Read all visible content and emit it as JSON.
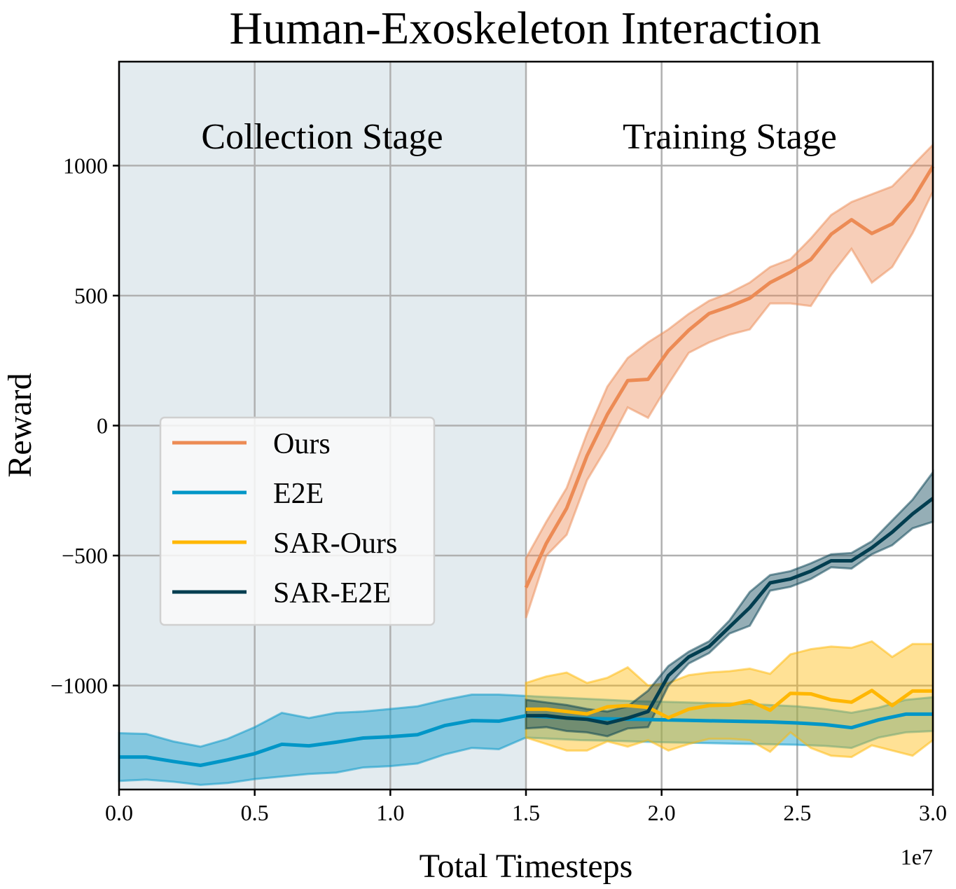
{
  "chart_data": {
    "type": "line",
    "title": "Human-Exoskeleton Interaction",
    "xlabel": "Total Timesteps",
    "ylabel": "Reward",
    "x_offset_label": "1e7",
    "xlim": [
      0,
      30000000
    ],
    "ylim": [
      -1400,
      1400
    ],
    "xticks": [
      0,
      5000000,
      10000000,
      15000000,
      20000000,
      25000000,
      30000000
    ],
    "xtick_labels": [
      "0.0",
      "0.5",
      "1.0",
      "1.5",
      "2.0",
      "2.5",
      "3.0"
    ],
    "yticks": [
      -1000,
      -500,
      0,
      500,
      1000
    ],
    "ytick_labels": [
      "−1000",
      "−500",
      "0",
      "500",
      "1000"
    ],
    "grid": true,
    "legend_placement": "center-left",
    "regions": [
      {
        "label": "Collection Stage",
        "x": [
          0,
          15000000
        ],
        "color": "#e3ebef"
      },
      {
        "label": "Training Stage",
        "x": [
          15000000,
          30000000
        ],
        "color": "#ffffff"
      }
    ],
    "series": [
      {
        "name": "Ours",
        "color": "#ec8b55",
        "x_start": 15000000,
        "x_step": 750000,
        "mean": [
          -623,
          -453,
          -318,
          -116,
          43,
          173,
          178,
          288,
          367,
          431,
          458,
          490,
          550,
          590,
          639,
          736,
          792,
          739,
          776,
          868,
          997
        ],
        "upper": [
          -510,
          -370,
          -240,
          -30,
          150,
          260,
          320,
          370,
          430,
          480,
          510,
          550,
          610,
          640,
          720,
          810,
          860,
          890,
          920,
          1000,
          1080
        ],
        "lower": [
          -740,
          -500,
          -420,
          -210,
          -80,
          70,
          30,
          160,
          280,
          320,
          350,
          370,
          470,
          470,
          460,
          580,
          680,
          550,
          610,
          740,
          900
        ]
      },
      {
        "name": "E2E",
        "color": "#0096c7",
        "x_start": 0,
        "x_step": 1000000,
        "mean": [
          -1275,
          -1275,
          -1292,
          -1307,
          -1286,
          -1262,
          -1226,
          -1232,
          -1218,
          -1202,
          -1197,
          -1189,
          -1154,
          -1135,
          -1137,
          -1116,
          -1122,
          -1126,
          -1128,
          -1130,
          -1132,
          -1134,
          -1136,
          -1138,
          -1140,
          -1144,
          -1150,
          -1162,
          -1132,
          -1110,
          -1110
        ],
        "upper": [
          -1183,
          -1186,
          -1215,
          -1235,
          -1205,
          -1160,
          -1105,
          -1125,
          -1105,
          -1100,
          -1090,
          -1080,
          -1055,
          -1035,
          -1035,
          -1040,
          -1045,
          -1050,
          -1055,
          -1060,
          -1062,
          -1065,
          -1068,
          -1070,
          -1075,
          -1080,
          -1090,
          -1105,
          -1085,
          -1055,
          -1045
        ],
        "lower": [
          -1367,
          -1362,
          -1370,
          -1382,
          -1375,
          -1360,
          -1350,
          -1340,
          -1335,
          -1315,
          -1310,
          -1300,
          -1265,
          -1240,
          -1245,
          -1200,
          -1205,
          -1210,
          -1212,
          -1215,
          -1218,
          -1220,
          -1222,
          -1224,
          -1226,
          -1228,
          -1232,
          -1240,
          -1200,
          -1180,
          -1175
        ]
      },
      {
        "name": "SAR-Ours",
        "color": "#ffb703",
        "x_start": 15000000,
        "x_step": 750000,
        "mean": [
          -1091,
          -1091,
          -1100,
          -1109,
          -1082,
          -1077,
          -1084,
          -1124,
          -1091,
          -1077,
          -1075,
          -1059,
          -1095,
          -1030,
          -1032,
          -1055,
          -1064,
          -1019,
          -1077,
          -1021,
          -1021
        ],
        "upper": [
          -990,
          -965,
          -950,
          -990,
          -970,
          -930,
          -1000,
          -990,
          -960,
          -950,
          -945,
          -935,
          -955,
          -880,
          -860,
          -850,
          -855,
          -830,
          -890,
          -840,
          -840
        ],
        "lower": [
          -1200,
          -1225,
          -1250,
          -1250,
          -1215,
          -1235,
          -1210,
          -1250,
          -1225,
          -1205,
          -1205,
          -1210,
          -1255,
          -1180,
          -1240,
          -1270,
          -1275,
          -1230,
          -1250,
          -1270,
          -1210
        ]
      },
      {
        "name": "SAR-E2E",
        "color": "#023e50",
        "x_start": 15000000,
        "x_step": 750000,
        "mean": [
          -1116,
          -1116,
          -1125,
          -1130,
          -1145,
          -1125,
          -1100,
          -962,
          -890,
          -850,
          -775,
          -700,
          -605,
          -590,
          -560,
          -520,
          -520,
          -470,
          -410,
          -340,
          -280
        ],
        "upper": [
          -1055,
          -1065,
          -1075,
          -1090,
          -1100,
          -1080,
          -1020,
          -925,
          -870,
          -830,
          -750,
          -640,
          -575,
          -560,
          -530,
          -495,
          -490,
          -445,
          -365,
          -285,
          -180
        ],
        "lower": [
          -1165,
          -1160,
          -1175,
          -1180,
          -1195,
          -1165,
          -1160,
          -1000,
          -915,
          -875,
          -800,
          -770,
          -635,
          -620,
          -590,
          -545,
          -550,
          -495,
          -460,
          -395,
          -370
        ]
      }
    ]
  }
}
